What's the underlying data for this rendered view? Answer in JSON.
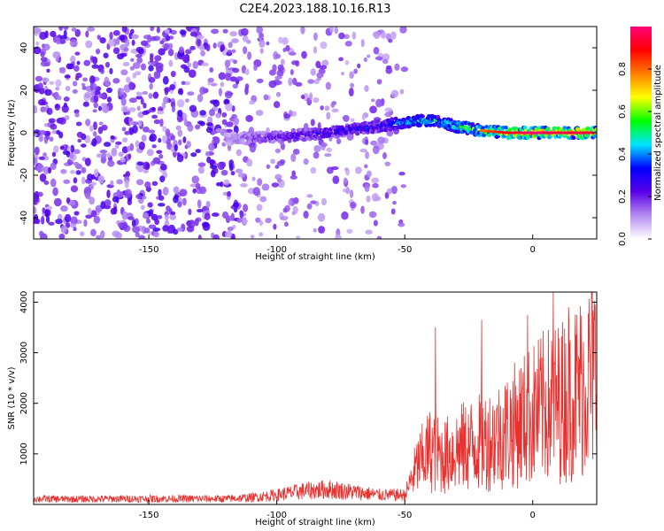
{
  "title": "C2E4.2023.188.10.16.R13",
  "colors": {
    "snr_line": "#e8312f",
    "axis": "#000000"
  },
  "chart_data": [
    {
      "type": "heatmap",
      "xlabel": "Height of straight line (km)",
      "ylabel": "Frequency (Hz)",
      "xlim": [
        -195,
        25
      ],
      "ylim": [
        -50,
        50
      ],
      "x_ticks": [
        -150,
        -100,
        -50,
        0
      ],
      "y_ticks": [
        -40,
        -20,
        0,
        20,
        40
      ],
      "colorbar": {
        "label": "Normalized spectral amplitude",
        "range": [
          0,
          1
        ],
        "ticks": [
          0.0,
          0.2,
          0.4,
          0.6,
          0.8
        ],
        "tick_labels": [
          "0.0",
          "0.2",
          "0.4",
          "0.6",
          "0.8"
        ],
        "colors": [
          "#ffffff",
          "#b58cf0",
          "#5a00e8",
          "#0000ff",
          "#00e5ff",
          "#00ff00",
          "#ffff00",
          "#ff7f00",
          "#ff0000",
          "#ff0078"
        ]
      },
      "signal_trace": {
        "description_points_height_km": [
          -120,
          -100,
          -80,
          -60,
          -50,
          -40,
          -30,
          -20,
          -10,
          0,
          10,
          25
        ],
        "frequency_hz": [
          -3,
          -2,
          0,
          3,
          5,
          6,
          3,
          1,
          0,
          0,
          0,
          0
        ],
        "amplitude": [
          0.15,
          0.25,
          0.3,
          0.35,
          0.45,
          0.5,
          0.55,
          0.65,
          0.75,
          0.85,
          0.8,
          0.8
        ]
      }
    },
    {
      "type": "line",
      "xlabel": "Height of straight line (km)",
      "ylabel": "SNR (10 * v/v)",
      "xlim": [
        -195,
        25
      ],
      "ylim": [
        0,
        4200
      ],
      "x_ticks": [
        -150,
        -100,
        -50,
        0
      ],
      "y_ticks": [
        1000,
        2000,
        3000,
        4000
      ],
      "series": [
        {
          "x": [
            -195,
            -180,
            -160,
            -140,
            -120,
            -110,
            -100,
            -90,
            -80,
            -70,
            -60,
            -50,
            -45,
            -40,
            -35,
            -30,
            -25,
            -20,
            -15,
            -10,
            -5,
            0,
            5,
            10,
            15,
            20,
            25
          ],
          "y": [
            150,
            140,
            150,
            150,
            150,
            180,
            250,
            350,
            400,
            330,
            250,
            250,
            1000,
            1400,
            1200,
            1400,
            1500,
            1600,
            1700,
            1900,
            2100,
            2300,
            2500,
            2600,
            2800,
            3100,
            3400
          ],
          "peaks": [
            [
              -38,
              3500
            ],
            [
              -20,
              3650
            ],
            [
              -2,
              3750
            ],
            [
              8,
              4200
            ],
            [
              14,
              3900
            ]
          ]
        }
      ]
    }
  ]
}
